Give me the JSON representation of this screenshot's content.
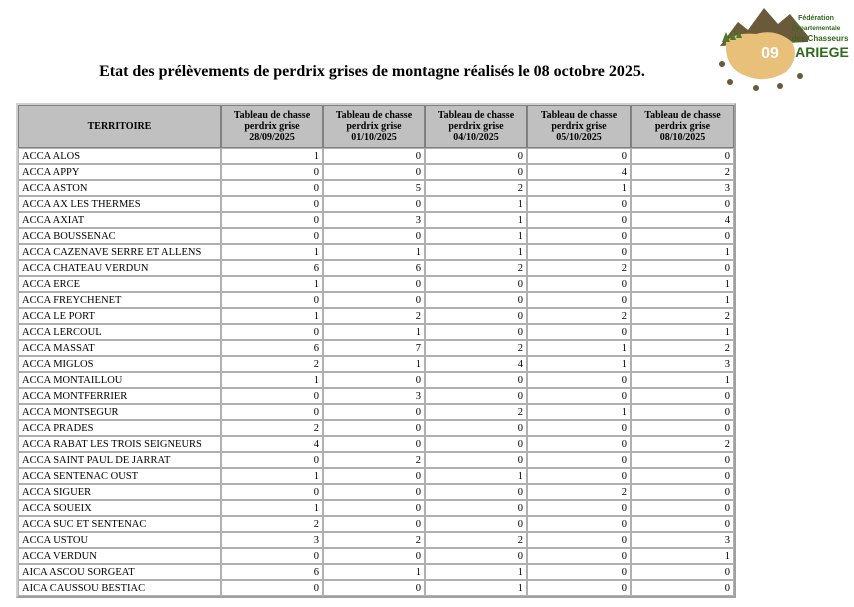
{
  "logo": {
    "badge": "09",
    "line1": "Fédération",
    "line2": "Départementale",
    "line3": "des Chasseurs",
    "line4": "ARIEGE"
  },
  "header": {
    "title": "Etat des prélèvements de perdrix grises de montagne réalisés le 08 octobre 2025."
  },
  "table": {
    "columns": [
      {
        "label": "TERRITOIRE"
      },
      {
        "label": "Tableau de chasse perdrix grise",
        "date": "28/09/2025"
      },
      {
        "label": "Tableau de chasse perdrix grise",
        "date": "01/10/2025"
      },
      {
        "label": "Tableau de chasse perdrix grise",
        "date": "04/10/2025"
      },
      {
        "label": "Tableau de chasse perdrix grise",
        "date": "05/10/2025"
      },
      {
        "label": "Tableau de chasse perdrix grise",
        "date": "08/10/2025"
      }
    ],
    "rows": [
      [
        "ACCA ALOS",
        1,
        0,
        0,
        0,
        0
      ],
      [
        "ACCA APPY",
        0,
        0,
        0,
        4,
        2
      ],
      [
        "ACCA ASTON",
        0,
        5,
        2,
        1,
        3
      ],
      [
        "ACCA AX LES THERMES",
        0,
        0,
        1,
        0,
        0
      ],
      [
        "ACCA AXIAT",
        0,
        3,
        1,
        0,
        4
      ],
      [
        "ACCA BOUSSENAC",
        0,
        0,
        1,
        0,
        0
      ],
      [
        "ACCA CAZENAVE SERRE ET ALLENS",
        1,
        1,
        1,
        0,
        1
      ],
      [
        "ACCA CHATEAU VERDUN",
        6,
        6,
        2,
        2,
        0
      ],
      [
        "ACCA ERCE",
        1,
        0,
        0,
        0,
        1
      ],
      [
        "ACCA FREYCHENET",
        0,
        0,
        0,
        0,
        1
      ],
      [
        "ACCA LE PORT",
        1,
        2,
        0,
        2,
        2
      ],
      [
        "ACCA LERCOUL",
        0,
        1,
        0,
        0,
        1
      ],
      [
        "ACCA MASSAT",
        6,
        7,
        2,
        1,
        2
      ],
      [
        "ACCA MIGLOS",
        2,
        1,
        4,
        1,
        3
      ],
      [
        "ACCA MONTAILLOU",
        1,
        0,
        0,
        0,
        1
      ],
      [
        "ACCA MONTFERRIER",
        0,
        3,
        0,
        0,
        0
      ],
      [
        "ACCA MONTSEGUR",
        0,
        0,
        2,
        1,
        0
      ],
      [
        "ACCA PRADES",
        2,
        0,
        0,
        0,
        0
      ],
      [
        "ACCA RABAT LES TROIS SEIGNEURS",
        4,
        0,
        0,
        0,
        2
      ],
      [
        "ACCA SAINT PAUL DE JARRAT",
        0,
        2,
        0,
        0,
        0
      ],
      [
        "ACCA SENTENAC OUST",
        1,
        0,
        1,
        0,
        0
      ],
      [
        "ACCA SIGUER",
        0,
        0,
        0,
        2,
        0
      ],
      [
        "ACCA SOUEIX",
        1,
        0,
        0,
        0,
        0
      ],
      [
        "ACCA SUC ET SENTENAC",
        2,
        0,
        0,
        0,
        0
      ],
      [
        "ACCA USTOU",
        3,
        2,
        2,
        0,
        3
      ],
      [
        "ACCA VERDUN",
        0,
        0,
        0,
        0,
        1
      ],
      [
        "AICA ASCOU SORGEAT",
        6,
        1,
        1,
        0,
        0
      ],
      [
        "AICA CAUSSOU BESTIAC",
        0,
        0,
        1,
        0,
        0
      ]
    ]
  }
}
